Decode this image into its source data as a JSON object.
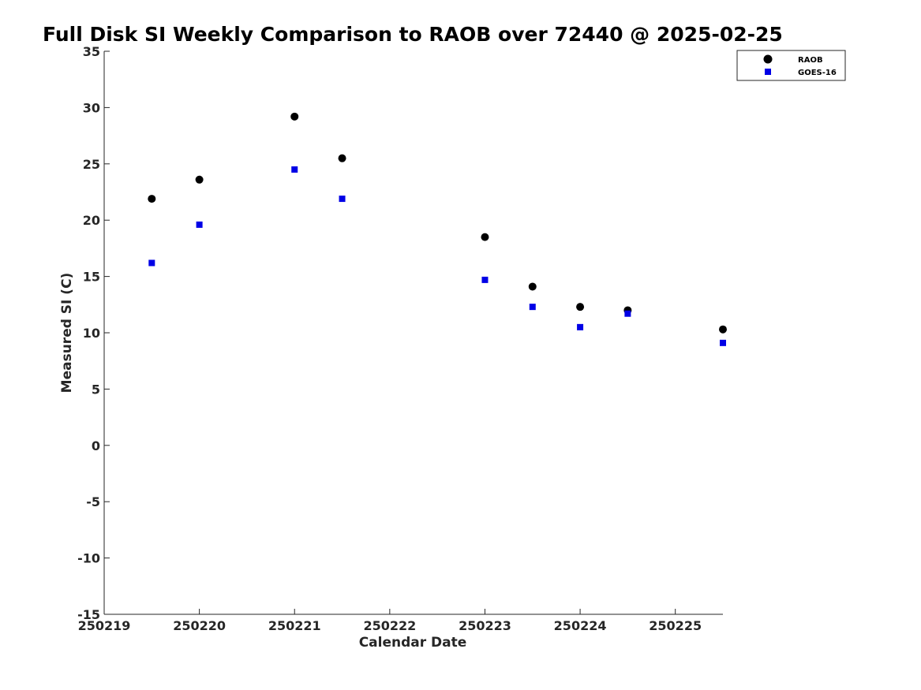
{
  "chart_data": {
    "type": "scatter",
    "title": "Full Disk SI Weekly Comparison to RAOB over 72440 @ 2025-02-25",
    "xlabel": "Calendar Date",
    "ylabel": "Measured SI (C)",
    "xlim": [
      "2025-02-19",
      "2025-02-25 12:00"
    ],
    "ylim": [
      -15,
      35
    ],
    "x_ticks": [
      "2025-02-19",
      "2025-02-20",
      "2025-02-21",
      "2025-02-22",
      "2025-02-23",
      "2025-02-24",
      "2025-02-25"
    ],
    "x_tick_labels": [
      "250219",
      "250220",
      "250221",
      "250222",
      "250223",
      "250224",
      "250225"
    ],
    "y_ticks": [
      35,
      30,
      25,
      20,
      15,
      10,
      5,
      0,
      -5,
      -10,
      -15
    ],
    "y_tick_labels": [
      "35",
      "30",
      "25",
      "20",
      "15",
      "10",
      "5",
      "0",
      "-5",
      "-10",
      "-15"
    ],
    "grid": false,
    "legend_position": "top-right",
    "series": [
      {
        "name": "RAOB",
        "marker": "circle",
        "color": "#000000",
        "x": [
          "2025-02-19 12:00",
          "2025-02-20",
          "2025-02-21",
          "2025-02-21 12:00",
          "2025-02-23",
          "2025-02-23 12:00",
          "2025-02-24",
          "2025-02-24 12:00",
          "2025-02-25 12:00"
        ],
        "y": [
          21.9,
          23.6,
          29.2,
          25.5,
          18.5,
          14.1,
          12.3,
          12.0,
          10.3
        ]
      },
      {
        "name": "GOES-16",
        "marker": "square",
        "color": "#0000e6",
        "x": [
          "2025-02-19 12:00",
          "2025-02-20",
          "2025-02-21",
          "2025-02-21 12:00",
          "2025-02-23",
          "2025-02-23 12:00",
          "2025-02-24",
          "2025-02-24 12:00",
          "2025-02-25 12:00"
        ],
        "y": [
          16.2,
          19.6,
          24.5,
          21.9,
          14.7,
          12.3,
          10.5,
          11.7,
          9.1
        ]
      }
    ]
  }
}
